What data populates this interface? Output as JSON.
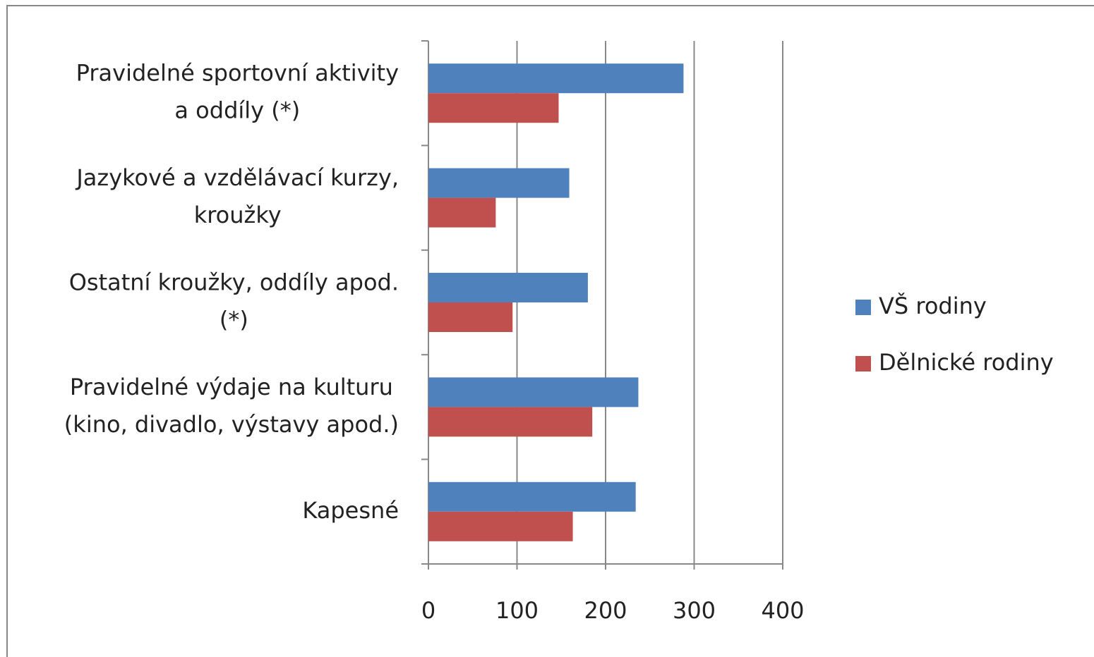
{
  "chart_data": {
    "type": "barh",
    "categories": [
      "Pravidelné sportovní aktivity\na oddíly (*)",
      "Jazykové a vzdělávací kurzy,\nkroužky",
      "Ostatní kroužky, oddíly apod.\n(*)",
      "Pravidelné výdaje na kulturu\n(kino, divadlo, výstavy apod.)",
      "Kapesné"
    ],
    "series": [
      {
        "name": "VŠ rodiny",
        "color": "#4f81bd",
        "values": [
          288,
          159,
          180,
          237,
          234
        ]
      },
      {
        "name": "Dělnické rodiny",
        "color": "#c0504d",
        "values": [
          147,
          76,
          95,
          185,
          163
        ]
      }
    ],
    "xlim": [
      0,
      400
    ],
    "xticks": [
      0,
      100,
      200,
      300,
      400
    ],
    "grid": true,
    "legend": "right"
  }
}
